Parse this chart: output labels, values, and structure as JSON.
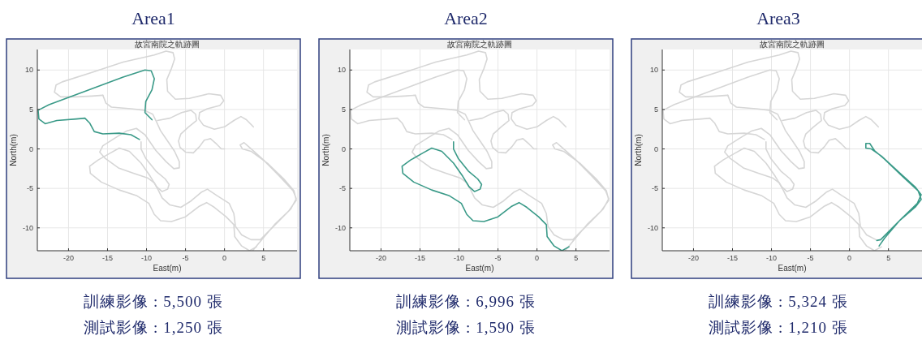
{
  "chart_data": [
    {
      "type": "line",
      "title": "Area1",
      "subtitle": "故宮南院之軌跡圖",
      "xlabel": "East(m)",
      "ylabel": "North(m)",
      "xlim": [
        -24,
        9.3
      ],
      "ylim": [
        -12.9,
        12.6
      ],
      "xticks": [
        -20,
        -15,
        -10,
        -5,
        0,
        5
      ],
      "yticks": [
        -10,
        -5,
        0,
        5,
        10
      ],
      "grid": true,
      "annotations": [
        "訓練影像 : 5,500 張",
        "測試影像 : 1,250 張"
      ],
      "series": [
        {
          "color": "#d6d6d6",
          "x": [
            -15.6,
            -17,
            -19,
            -21,
            -21.8,
            -21.6,
            -20.8,
            -17,
            -13,
            -9,
            -7.5,
            -6.6,
            -6.4,
            -6.8,
            -7.4,
            -7.3,
            -6.3,
            -4.5,
            -2,
            -0.5,
            -0.1,
            -0.6,
            -2.2,
            -3.2,
            -3.3,
            -2.7,
            -1.3,
            0,
            1.2,
            2.1,
            2.8,
            3.7
          ],
          "values": [
            6.8,
            6.7,
            6.6,
            6.6,
            7.2,
            8.1,
            8.5,
            9.7,
            11,
            11.9,
            12.4,
            12.2,
            11.4,
            10.2,
            8.8,
            7.3,
            6.3,
            6.4,
            7,
            6.8,
            6.1,
            5.5,
            5.1,
            4.6,
            3.8,
            3,
            2.5,
            2.8,
            3.6,
            4.1,
            3.7,
            2.8
          ]
        },
        {
          "color": "#d6d6d6",
          "x": [
            -15.6,
            -15.2,
            -14.5,
            -12,
            -10.3,
            -9.2,
            -8.8,
            -8.2,
            -7.3,
            -6.4,
            -5.8,
            -5.8,
            -6.5,
            -7.5,
            -8.8,
            -10.2,
            -11.3,
            -12.5,
            -14,
            -15.6,
            -16,
            -15.3,
            -13.6,
            -11.6,
            -9.8,
            -9,
            -8.5,
            -8,
            -7,
            -5.6,
            -4.3,
            -3,
            -2.2,
            -1,
            0.6,
            1.2,
            1.4,
            2.2,
            3.4,
            4.6,
            6.5,
            8.5,
            9.2,
            8.8,
            7,
            5,
            3.2,
            2.5,
            2,
            2.3,
            3.4,
            5.5,
            7.6,
            8.9,
            9.2,
            8.2,
            6.4,
            4.7,
            3.6
          ],
          "values": [
            6.8,
            5.8,
            5.3,
            5.1,
            4.9,
            4.4,
            3.6,
            2.3,
            1,
            -0.3,
            -1.6,
            -2.4,
            -2.5,
            -1.6,
            -0.2,
            1.8,
            2.6,
            2.3,
            1.4,
            0.4,
            -0.4,
            -1.2,
            -2.4,
            -3.1,
            -3.7,
            -4.3,
            -5.2,
            -6.2,
            -7.1,
            -7.4,
            -6.6,
            -5.5,
            -5.1,
            -5.9,
            -6.9,
            -8.2,
            -9.8,
            -10.9,
            -11.5,
            -11.5,
            -9.6,
            -7.6,
            -6.3,
            -5.3,
            -3.4,
            -1.4,
            0.2,
            0.8,
            0.5,
            0,
            -0.3,
            -1.8,
            -3.8,
            -5.3,
            -6.5,
            -7.9,
            -9.6,
            -11.6,
            -12.9
          ]
        },
        {
          "color": "#d6d6d6",
          "x": [
            -10.7,
            -10.7,
            -10.1,
            -8.8,
            -7.6,
            -7.1,
            -7.3,
            -8,
            -8.7,
            -9.5,
            -10.7,
            -12.2,
            -13.5,
            -14.6,
            -16.2,
            -17.3,
            -17.2,
            -15.8,
            -13.5,
            -11.3,
            -9.7,
            -9,
            -8.2,
            -6.8,
            -5,
            -3.3,
            -2.3,
            -1.3,
            0.2,
            1.2,
            1.3,
            2.2,
            3.2,
            4.1
          ],
          "values": [
            0.9,
            0,
            -1.2,
            -2.8,
            -3.8,
            -4.5,
            -5.1,
            -5.4,
            -4.8,
            -3.5,
            -1.8,
            -0.3,
            0.1,
            -0.5,
            -1.4,
            -2.2,
            -3.1,
            -4.2,
            -5.2,
            -5.9,
            -6.9,
            -8.3,
            -9.1,
            -9.2,
            -8.6,
            -7.3,
            -6.8,
            -7.4,
            -8.6,
            -9.6,
            -11.1,
            -12.3,
            -12.9,
            -12.4
          ]
        },
        {
          "color": "#d6d6d6",
          "x": [
            -8.6,
            -7,
            -5.5,
            -4.3,
            -3.7,
            -3.6,
            -4.6,
            -5.6,
            -5.9,
            -5.7,
            -5,
            -4,
            -3.2,
            -2.6,
            -1.8,
            -1,
            -0.4,
            0
          ],
          "values": [
            3.6,
            3.9,
            4.6,
            4.9,
            4.4,
            3.6,
            2.8,
            1.9,
            1,
            0.2,
            -0.4,
            -0.5,
            0.3,
            1.1,
            1.3,
            0.6,
            0,
            0
          ]
        },
        {
          "color": "#3a9a88",
          "x": [
            -9.3,
            -10.2,
            -10.1,
            -9.3,
            -9,
            -9.4,
            -10.2,
            -13,
            -16,
            -19,
            -22.5,
            -23.9,
            -23.8,
            -23,
            -21.5,
            -19,
            -17.9,
            -17.3,
            -16.7,
            -15.6,
            -13.5,
            -12,
            -10.9
          ],
          "values": [
            3.7,
            4.6,
            6,
            7.5,
            8.9,
            9.9,
            10,
            9.1,
            8,
            6.9,
            5.6,
            4.9,
            3.8,
            3.2,
            3.6,
            3.8,
            3.9,
            3.3,
            2.2,
            1.9,
            2,
            1.8,
            1.2
          ]
        }
      ]
    },
    {
      "type": "line",
      "title": "Area2",
      "subtitle": "故宮南院之軌跡圖",
      "xlabel": "East(m)",
      "ylabel": "North(m)",
      "xlim": [
        -24,
        9.3
      ],
      "ylim": [
        -12.9,
        12.6
      ],
      "xticks": [
        -20,
        -15,
        -10,
        -5,
        0,
        5
      ],
      "yticks": [
        -10,
        -5,
        0,
        5,
        10
      ],
      "grid": true,
      "annotations": [
        "訓練影像 : 6,996 張",
        "測試影像 : 1,590 張"
      ],
      "series": [
        {
          "color": "#d6d6d6",
          "x": [
            -15.6,
            -17,
            -19,
            -21,
            -21.8,
            -21.6,
            -20.8,
            -17,
            -13,
            -9,
            -7.5,
            -6.6,
            -6.4,
            -6.8,
            -7.4,
            -7.3,
            -6.3,
            -4.5,
            -2,
            -0.5,
            -0.1,
            -0.6,
            -2.2,
            -3.2,
            -3.3,
            -2.7,
            -1.3,
            0,
            1.2,
            2.1,
            2.8,
            3.7
          ],
          "values": [
            6.8,
            6.7,
            6.6,
            6.6,
            7.2,
            8.1,
            8.5,
            9.7,
            11,
            11.9,
            12.4,
            12.2,
            11.4,
            10.2,
            8.8,
            7.3,
            6.3,
            6.4,
            7,
            6.8,
            6.1,
            5.5,
            5.1,
            4.6,
            3.8,
            3,
            2.5,
            2.8,
            3.6,
            4.1,
            3.7,
            2.8
          ]
        },
        {
          "color": "#d6d6d6",
          "x": [
            -15.6,
            -15.2,
            -14.5,
            -12,
            -10.3,
            -9.2,
            -8.8,
            -8.2,
            -7.3,
            -6.4,
            -5.8,
            -5.8,
            -6.5,
            -7.5,
            -8.8,
            -10.2,
            -11.3,
            -12.5,
            -14,
            -15.6,
            -16,
            -15.3,
            -13.6,
            -11.6,
            -9.8,
            -9,
            -8.5,
            -8,
            -7,
            -5.6,
            -4.3,
            -3,
            -2.2,
            -1,
            0.6,
            1.2,
            1.4,
            2.2,
            3.4,
            4.6,
            6.5,
            8.5,
            9.2,
            8.8,
            7,
            5,
            3.2,
            2.5,
            2,
            2.3,
            3.4,
            5.5,
            7.6,
            8.9,
            9.2,
            8.2,
            6.4,
            4.7,
            3.6
          ],
          "values": [
            6.8,
            5.8,
            5.3,
            5.1,
            4.9,
            4.4,
            3.6,
            2.3,
            1,
            -0.3,
            -1.6,
            -2.4,
            -2.5,
            -1.6,
            -0.2,
            1.8,
            2.6,
            2.3,
            1.4,
            0.4,
            -0.4,
            -1.2,
            -2.4,
            -3.1,
            -3.7,
            -4.3,
            -5.2,
            -6.2,
            -7.1,
            -7.4,
            -6.6,
            -5.5,
            -5.1,
            -5.9,
            -6.9,
            -8.2,
            -9.8,
            -10.9,
            -11.5,
            -11.5,
            -9.6,
            -7.6,
            -6.3,
            -5.3,
            -3.4,
            -1.4,
            0.2,
            0.8,
            0.5,
            0,
            -0.3,
            -1.8,
            -3.8,
            -5.3,
            -6.5,
            -7.9,
            -9.6,
            -11.6,
            -12.9
          ]
        },
        {
          "color": "#d6d6d6",
          "x": [
            -8.6,
            -7,
            -5.5,
            -4.3,
            -3.7,
            -3.6,
            -4.6,
            -5.6,
            -5.9,
            -5.7,
            -5,
            -4,
            -3.2,
            -2.6,
            -1.8,
            -1,
            -0.4,
            0
          ],
          "values": [
            3.6,
            3.9,
            4.6,
            4.9,
            4.4,
            3.6,
            2.8,
            1.9,
            1,
            0.2,
            -0.4,
            -0.5,
            0.3,
            1.1,
            1.3,
            0.6,
            0,
            0
          ]
        },
        {
          "color": "#d6d6d6",
          "x": [
            -9.3,
            -10.2,
            -10.1,
            -9.3,
            -9,
            -9.4,
            -10.2,
            -13,
            -16,
            -19,
            -22.5,
            -23.9,
            -23.8,
            -23,
            -21.5,
            -19,
            -17.9,
            -17.3,
            -16.7,
            -15.6,
            -13.5,
            -12,
            -10.9
          ],
          "values": [
            3.7,
            4.6,
            6,
            7.5,
            8.9,
            9.9,
            10,
            9.1,
            8,
            6.9,
            5.6,
            4.9,
            3.8,
            3.2,
            3.6,
            3.8,
            3.9,
            3.3,
            2.2,
            1.9,
            2,
            1.8,
            1.2
          ]
        },
        {
          "color": "#3a9a88",
          "x": [
            -10.7,
            -10.7,
            -10.1,
            -8.8,
            -7.6,
            -7.1,
            -7.3,
            -8,
            -8.7,
            -9.5,
            -10.7,
            -12.2,
            -13.5,
            -14.6,
            -16.2,
            -17.3,
            -17.2,
            -15.8,
            -13.5,
            -11.3,
            -9.7,
            -9,
            -8.2,
            -6.8,
            -5,
            -3.3,
            -2.3,
            -1.3,
            0.2,
            1.2,
            1.3,
            2.2,
            3.2,
            4.1
          ],
          "values": [
            0.9,
            0,
            -1.2,
            -2.8,
            -3.8,
            -4.5,
            -5.1,
            -5.4,
            -4.8,
            -3.5,
            -1.8,
            -0.3,
            0.1,
            -0.5,
            -1.4,
            -2.2,
            -3.1,
            -4.2,
            -5.2,
            -5.9,
            -6.9,
            -8.3,
            -9.1,
            -9.2,
            -8.6,
            -7.3,
            -6.8,
            -7.4,
            -8.6,
            -9.6,
            -11.1,
            -12.3,
            -12.9,
            -12.4
          ]
        }
      ]
    },
    {
      "type": "line",
      "title": "Area3",
      "subtitle": "故宮南院之軌跡圖",
      "xlabel": "East(m)",
      "ylabel": "North(m)",
      "xlim": [
        -24,
        9.3
      ],
      "ylim": [
        -12.9,
        12.6
      ],
      "xticks": [
        -20,
        -15,
        -10,
        -5,
        0,
        5
      ],
      "yticks": [
        -10,
        -5,
        0,
        5,
        10
      ],
      "grid": true,
      "annotations": [
        "訓練影像 : 5,324 張",
        "測試影像 : 1,210 張"
      ],
      "series": [
        {
          "color": "#d6d6d6",
          "x": [
            -15.6,
            -17,
            -19,
            -21,
            -21.8,
            -21.6,
            -20.8,
            -17,
            -13,
            -9,
            -7.5,
            -6.6,
            -6.4,
            -6.8,
            -7.4,
            -7.3,
            -6.3,
            -4.5,
            -2,
            -0.5,
            -0.1,
            -0.6,
            -2.2,
            -3.2,
            -3.3,
            -2.7,
            -1.3,
            0,
            1.2,
            2.1,
            2.8,
            3.7
          ],
          "values": [
            6.8,
            6.7,
            6.6,
            6.6,
            7.2,
            8.1,
            8.5,
            9.7,
            11,
            11.9,
            12.4,
            12.2,
            11.4,
            10.2,
            8.8,
            7.3,
            6.3,
            6.4,
            7,
            6.8,
            6.1,
            5.5,
            5.1,
            4.6,
            3.8,
            3,
            2.5,
            2.8,
            3.6,
            4.1,
            3.7,
            2.8
          ]
        },
        {
          "color": "#d6d6d6",
          "x": [
            -15.6,
            -15.2,
            -14.5,
            -12,
            -10.3,
            -9.2,
            -8.8,
            -8.2,
            -7.3,
            -6.4,
            -5.8,
            -5.8,
            -6.5,
            -7.5,
            -8.8,
            -10.2,
            -11.3,
            -12.5,
            -14,
            -15.6,
            -16,
            -15.3,
            -13.6,
            -11.6,
            -9.8,
            -9,
            -8.5,
            -8,
            -7,
            -5.6,
            -4.3,
            -3,
            -2.2,
            -1,
            0.6,
            1.2,
            1.4,
            2.2,
            3.4
          ],
          "values": [
            6.8,
            5.8,
            5.3,
            5.1,
            4.9,
            4.4,
            3.6,
            2.3,
            1,
            -0.3,
            -1.6,
            -2.4,
            -2.5,
            -1.6,
            -0.2,
            1.8,
            2.6,
            2.3,
            1.4,
            0.4,
            -0.4,
            -1.2,
            -2.4,
            -3.1,
            -3.7,
            -4.3,
            -5.2,
            -6.2,
            -7.1,
            -7.4,
            -6.6,
            -5.5,
            -5.1,
            -5.9,
            -6.9,
            -8.2,
            -9.8,
            -10.9,
            -11.5
          ]
        },
        {
          "color": "#d6d6d6",
          "x": [
            -8.6,
            -7,
            -5.5,
            -4.3,
            -3.7,
            -3.6,
            -4.6,
            -5.6,
            -5.9,
            -5.7,
            -5,
            -4,
            -3.2,
            -2.6,
            -1.8,
            -1,
            -0.4,
            0
          ],
          "values": [
            3.6,
            3.9,
            4.6,
            4.9,
            4.4,
            3.6,
            2.8,
            1.9,
            1,
            0.2,
            -0.4,
            -0.5,
            0.3,
            1.1,
            1.3,
            0.6,
            0,
            0
          ]
        },
        {
          "color": "#d6d6d6",
          "x": [
            -9.3,
            -10.2,
            -10.1,
            -9.3,
            -9,
            -9.4,
            -10.2,
            -13,
            -16,
            -19,
            -22.5,
            -23.9,
            -23.8,
            -23,
            -21.5,
            -19,
            -17.9,
            -17.3,
            -16.7,
            -15.6,
            -13.5,
            -12,
            -10.9
          ],
          "values": [
            3.7,
            4.6,
            6,
            7.5,
            8.9,
            9.9,
            10,
            9.1,
            8,
            6.9,
            5.6,
            4.9,
            3.8,
            3.2,
            3.6,
            3.8,
            3.9,
            3.3,
            2.2,
            1.9,
            2,
            1.8,
            1.2
          ]
        },
        {
          "color": "#d6d6d6",
          "x": [
            -10.7,
            -10.7,
            -10.1,
            -8.8,
            -7.6,
            -7.1,
            -7.3,
            -8,
            -8.7,
            -9.5,
            -10.7,
            -12.2,
            -13.5,
            -14.6,
            -16.2,
            -17.3,
            -17.2,
            -15.8,
            -13.5,
            -11.3,
            -9.7,
            -9,
            -8.2,
            -6.8,
            -5,
            -3.3,
            -2.3,
            -1.3,
            0.2,
            1.2,
            1.3,
            2.2,
            3.2,
            4.1
          ],
          "values": [
            0.9,
            0,
            -1.2,
            -2.8,
            -3.8,
            -4.5,
            -5.1,
            -5.4,
            -4.8,
            -3.5,
            -1.8,
            -0.3,
            0.1,
            -0.5,
            -1.4,
            -2.2,
            -3.1,
            -4.2,
            -5.2,
            -5.9,
            -6.9,
            -8.3,
            -9.1,
            -9.2,
            -8.6,
            -7.3,
            -6.8,
            -7.4,
            -8.6,
            -9.6,
            -11.1,
            -12.3,
            -12.9,
            -12.4
          ]
        },
        {
          "color": "#3a9a88",
          "x": [
            3.5,
            4,
            6.3,
            8.5,
            9.2,
            8.8,
            6.5,
            4.5,
            3.2,
            2.6,
            2.1,
            2.1,
            2.8,
            4.1,
            6.3,
            8.5,
            9.2,
            8.7,
            6.5,
            4.5,
            3.8
          ],
          "values": [
            -11.6,
            -11.5,
            -9.2,
            -7.3,
            -6.4,
            -5.3,
            -3.2,
            -1.3,
            -0.2,
            0.7,
            0.7,
            0.1,
            0,
            -0.9,
            -2.9,
            -4.9,
            -5.8,
            -6.9,
            -9,
            -11.3,
            -12.3
          ]
        }
      ]
    }
  ]
}
